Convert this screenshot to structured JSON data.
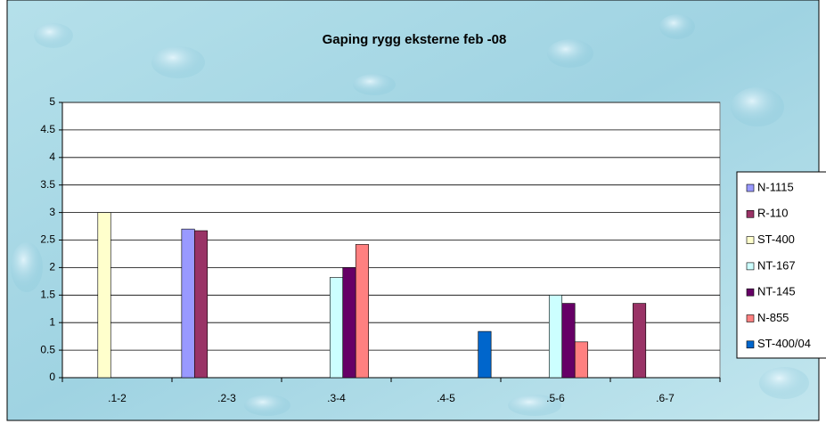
{
  "chart_data": {
    "type": "bar",
    "title": "Gaping rygg eksterne feb -08",
    "categories": [
      ".1-2",
      ".2-3",
      ".3-4",
      ".4-5",
      ".5-6",
      ".6-7"
    ],
    "series": [
      {
        "name": "N-1115",
        "color": "#9999ff",
        "values": [
          null,
          2.7,
          null,
          null,
          null,
          null
        ]
      },
      {
        "name": "R-110",
        "color": "#993366",
        "values": [
          null,
          2.67,
          null,
          null,
          null,
          1.35
        ]
      },
      {
        "name": "ST-400",
        "color": "#ffffcc",
        "values": [
          3,
          null,
          null,
          null,
          null,
          null
        ]
      },
      {
        "name": "NT-167",
        "color": "#ccffff",
        "values": [
          null,
          null,
          1.82,
          null,
          1.5,
          null
        ]
      },
      {
        "name": "NT-145",
        "color": "#660066",
        "values": [
          null,
          null,
          2.0,
          null,
          1.35,
          null
        ]
      },
      {
        "name": "N-855",
        "color": "#ff8080",
        "values": [
          null,
          null,
          2.42,
          null,
          0.65,
          null
        ]
      },
      {
        "name": "ST-400/04",
        "color": "#0066cc",
        "values": [
          null,
          null,
          null,
          0.84,
          null,
          null
        ]
      }
    ],
    "ylim": [
      0,
      5
    ],
    "yticks": [
      0,
      0.5,
      1,
      1.5,
      2,
      2.5,
      3,
      3.5,
      4,
      4.5,
      5
    ],
    "grid": true,
    "legend": "right"
  }
}
